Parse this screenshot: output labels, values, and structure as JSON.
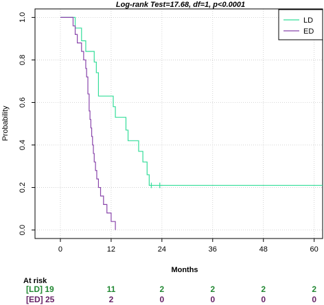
{
  "chart_data": {
    "type": "line",
    "title": "Log-rank Test=17.68, df=1, p<0.0001",
    "xlabel": "Months",
    "ylabel": "Probability",
    "xlim": [
      -6,
      62
    ],
    "ylim": [
      -0.04,
      1.04
    ],
    "xticks": [
      0,
      12,
      24,
      36,
      48,
      60
    ],
    "yticks": [
      0.0,
      0.2,
      0.4,
      0.6,
      0.8,
      1.0
    ],
    "yticklabels": [
      "0.0",
      "0.2",
      "0.4",
      "0.6",
      "0.8",
      "1.0"
    ],
    "grid": true,
    "legend_position": "top-right",
    "series": [
      {
        "name": "LD",
        "color": "#33dd99",
        "steps": [
          [
            0,
            1.0
          ],
          [
            3.5,
            0.95
          ],
          [
            5.0,
            0.89
          ],
          [
            6.0,
            0.84
          ],
          [
            8.0,
            0.79
          ],
          [
            8.5,
            0.74
          ],
          [
            9.0,
            0.63
          ],
          [
            12.5,
            0.58
          ],
          [
            13.0,
            0.53
          ],
          [
            15.5,
            0.47
          ],
          [
            16.0,
            0.42
          ],
          [
            18.5,
            0.37
          ],
          [
            19.5,
            0.32
          ],
          [
            20.5,
            0.26
          ],
          [
            21.0,
            0.21
          ],
          [
            62.0,
            0.21
          ]
        ],
        "censored": [
          [
            21.5,
            0.21
          ],
          [
            23.5,
            0.21
          ]
        ]
      },
      {
        "name": "ED",
        "color": "#8844aa",
        "steps": [
          [
            0,
            1.0
          ],
          [
            3.0,
            0.96
          ],
          [
            3.5,
            0.92
          ],
          [
            4.0,
            0.88
          ],
          [
            5.0,
            0.84
          ],
          [
            5.5,
            0.8
          ],
          [
            6.0,
            0.76
          ],
          [
            6.2,
            0.72
          ],
          [
            6.5,
            0.64
          ],
          [
            6.8,
            0.56
          ],
          [
            7.0,
            0.52
          ],
          [
            7.2,
            0.48
          ],
          [
            7.4,
            0.44
          ],
          [
            7.6,
            0.4
          ],
          [
            7.8,
            0.36
          ],
          [
            8.0,
            0.32
          ],
          [
            8.3,
            0.28
          ],
          [
            8.6,
            0.24
          ],
          [
            9.0,
            0.2
          ],
          [
            9.5,
            0.16
          ],
          [
            10.2,
            0.12
          ],
          [
            11.0,
            0.08
          ],
          [
            12.0,
            0.04
          ],
          [
            13.0,
            0.0
          ]
        ],
        "censored": []
      }
    ],
    "at_risk": {
      "header": "At risk",
      "times": [
        0,
        12,
        24,
        36,
        48,
        60
      ],
      "rows": [
        {
          "label": "[LD] 19",
          "values": [
            "11",
            "2",
            "2",
            "2",
            "2"
          ],
          "color": "#228833"
        },
        {
          "label": "[ED] 25",
          "values": [
            "2",
            "0",
            "0",
            "0",
            "0"
          ],
          "color": "#662266"
        }
      ]
    }
  }
}
